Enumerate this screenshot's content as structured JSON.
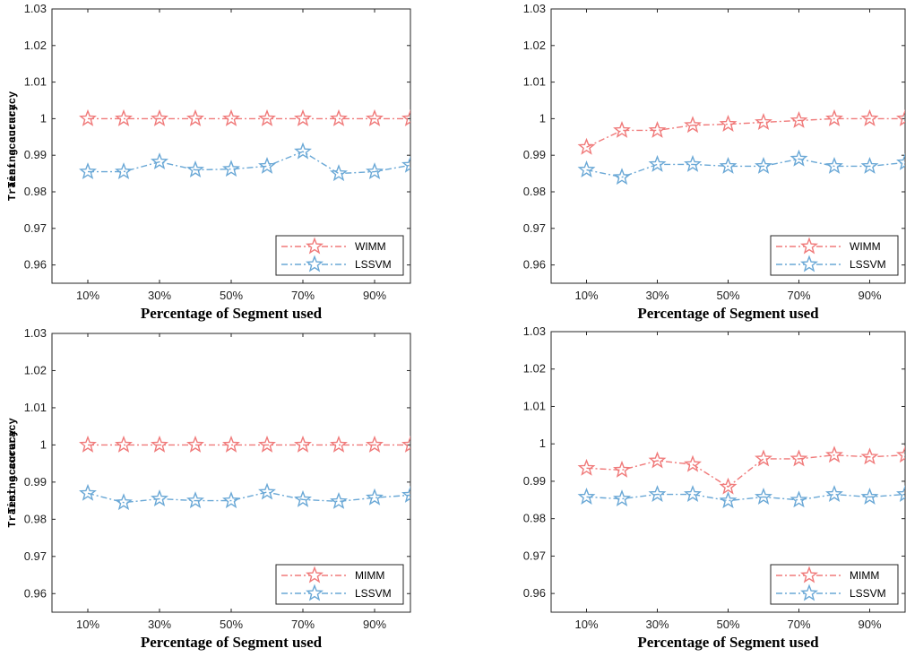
{
  "chart_data": [
    {
      "type": "line",
      "xlabel": "Percentage of Segment used",
      "ylabel": "Training accuracy",
      "x": [
        10,
        20,
        30,
        40,
        50,
        60,
        70,
        80,
        90,
        100
      ],
      "xticks": [
        "10%",
        "30%",
        "50%",
        "70%",
        "90%"
      ],
      "ylim": [
        0.955,
        1.03
      ],
      "yticks": [
        "0.96",
        "0.97",
        "0.98",
        "0.99",
        "1",
        "1.01",
        "1.02",
        "1.03"
      ],
      "grid": false,
      "legend_position": "bottom-right",
      "series": [
        {
          "name": "WIMM",
          "color": "#f07a7a",
          "values": [
            1.0,
            1.0,
            1.0,
            1.0,
            1.0,
            1.0,
            1.0,
            1.0,
            1.0,
            1.0
          ]
        },
        {
          "name": "LSSVM",
          "color": "#6aa8d6",
          "values": [
            0.9855,
            0.9855,
            0.9882,
            0.986,
            0.9862,
            0.987,
            0.991,
            0.985,
            0.9855,
            0.9873
          ]
        }
      ]
    },
    {
      "type": "line",
      "xlabel": "Percentage of Segment used",
      "ylabel": "Test accuracy",
      "x": [
        10,
        20,
        30,
        40,
        50,
        60,
        70,
        80,
        90,
        100
      ],
      "xticks": [
        "10%",
        "30%",
        "50%",
        "70%",
        "90%"
      ],
      "ylim": [
        0.955,
        1.03
      ],
      "yticks": [
        "0.96",
        "0.97",
        "0.98",
        "0.99",
        "1",
        "1.01",
        "1.02",
        "1.03"
      ],
      "grid": false,
      "legend_position": "bottom-right",
      "series": [
        {
          "name": "WIMM",
          "color": "#f07a7a",
          "values": [
            0.9922,
            0.9968,
            0.9968,
            0.9982,
            0.9985,
            0.999,
            0.9995,
            1.0,
            1.0,
            1.0
          ]
        },
        {
          "name": "LSSVM",
          "color": "#6aa8d6",
          "values": [
            0.986,
            0.984,
            0.9875,
            0.9875,
            0.987,
            0.987,
            0.989,
            0.987,
            0.987,
            0.988
          ]
        }
      ]
    },
    {
      "type": "line",
      "xlabel": "Percentage of Segment used",
      "ylabel": "Training accuracy",
      "x": [
        10,
        20,
        30,
        40,
        50,
        60,
        70,
        80,
        90,
        100
      ],
      "xticks": [
        "10%",
        "30%",
        "50%",
        "70%",
        "90%"
      ],
      "ylim": [
        0.955,
        1.03
      ],
      "yticks": [
        "0.96",
        "0.97",
        "0.98",
        "0.99",
        "1",
        "1.01",
        "1.02",
        "1.03"
      ],
      "grid": false,
      "legend_position": "bottom-right",
      "series": [
        {
          "name": "MIMM",
          "color": "#f07a7a",
          "values": [
            1.0,
            1.0,
            1.0,
            1.0,
            1.0,
            1.0,
            1.0,
            1.0,
            1.0,
            1.0
          ]
        },
        {
          "name": "LSSVM",
          "color": "#6aa8d6",
          "values": [
            0.987,
            0.9845,
            0.9855,
            0.985,
            0.985,
            0.9873,
            0.9853,
            0.9848,
            0.9858,
            0.9865
          ]
        }
      ]
    },
    {
      "type": "line",
      "xlabel": "Percentage of Segment used",
      "ylabel": "Test accuracy",
      "x": [
        10,
        20,
        30,
        40,
        50,
        60,
        70,
        80,
        90,
        100
      ],
      "xticks": [
        "10%",
        "30%",
        "50%",
        "70%",
        "90%"
      ],
      "ylim": [
        0.955,
        1.03
      ],
      "yticks": [
        "0.96",
        "0.97",
        "0.98",
        "0.99",
        "1",
        "1.01",
        "1.02",
        "1.03"
      ],
      "grid": false,
      "legend_position": "bottom-right",
      "series": [
        {
          "name": "MIMM",
          "color": "#f07a7a",
          "values": [
            0.9935,
            0.993,
            0.9955,
            0.9945,
            0.9885,
            0.996,
            0.996,
            0.997,
            0.9965,
            0.997
          ]
        },
        {
          "name": "LSSVM",
          "color": "#6aa8d6",
          "values": [
            0.9858,
            0.9853,
            0.9865,
            0.9865,
            0.9848,
            0.9858,
            0.985,
            0.9865,
            0.9858,
            0.9865
          ]
        }
      ]
    }
  ]
}
